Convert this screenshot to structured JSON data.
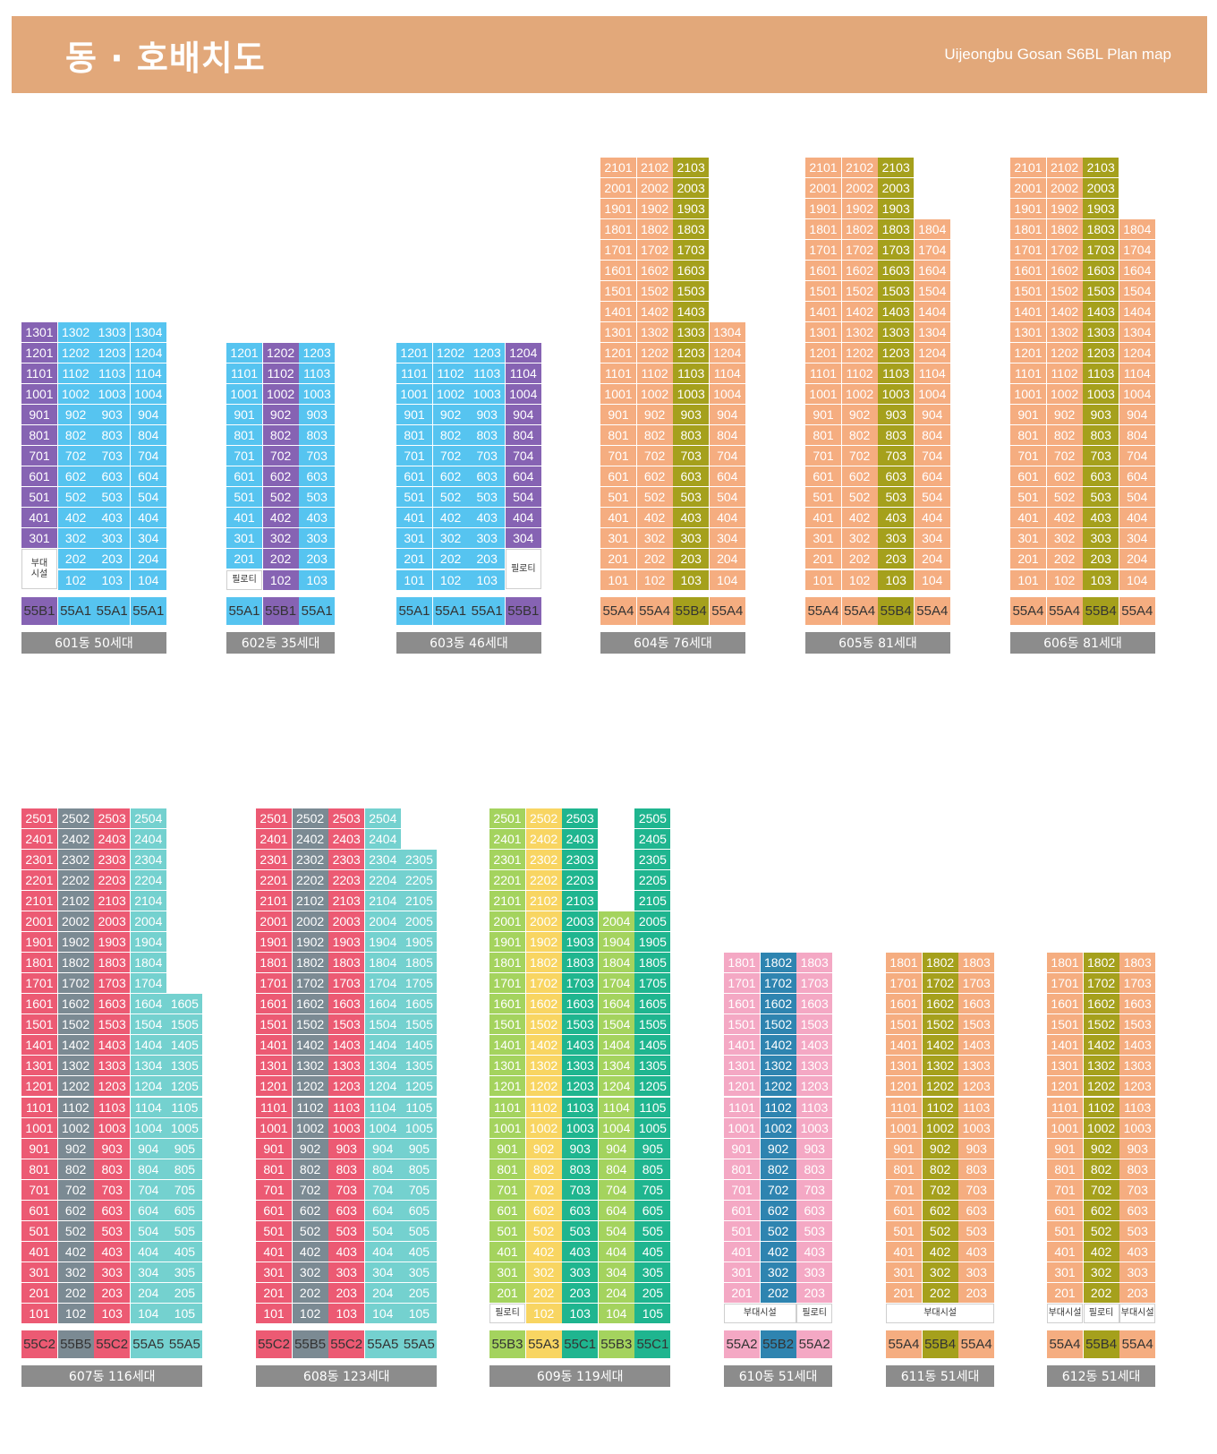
{
  "header": {
    "title": "동 · 호배치도",
    "subtitle": "Uijeongbu Gosan S6BL Plan map"
  },
  "colors": {
    "55B1": "#8663B3",
    "55A1": "#56C4F0",
    "55A4": "#F5AD80",
    "55B4": "#A5A01C",
    "55C2": "#EC5A73",
    "55B5": "#7B8A93",
    "55A5": "#74D1CF",
    "55B3": "#A4D35E",
    "55A3": "#F8D562",
    "55C1": "#1FB58F",
    "55A2": "#F4A8C4",
    "55B2": "#2E84B0"
  },
  "buildings": [
    {
      "id": "601",
      "label": "601동 50세대",
      "types": [
        "55B1",
        "55A1",
        "55A1",
        "55A1"
      ],
      "columns": [
        {
          "top": 13,
          "bottom": 3
        },
        {
          "top": 13,
          "bottom": 1
        },
        {
          "top": 13,
          "bottom": 1
        },
        {
          "top": 13,
          "bottom": 1
        }
      ],
      "facilities": [
        {
          "text": "부대\n시설",
          "col": 0,
          "span": 1,
          "floors": [
            1,
            2
          ]
        }
      ]
    },
    {
      "id": "602",
      "label": "602동 35세대",
      "types": [
        "55A1",
        "55B1",
        "55A1"
      ],
      "columns": [
        {
          "top": 12,
          "bottom": 2
        },
        {
          "top": 12,
          "bottom": 1
        },
        {
          "top": 12,
          "bottom": 1
        }
      ],
      "facilities": [
        {
          "text": "필로티",
          "col": 0,
          "span": 1,
          "floors": [
            1
          ]
        }
      ]
    },
    {
      "id": "603",
      "label": "603동 46세대",
      "types": [
        "55A1",
        "55A1",
        "55A1",
        "55B1"
      ],
      "columns": [
        {
          "top": 12,
          "bottom": 1
        },
        {
          "top": 12,
          "bottom": 1
        },
        {
          "top": 12,
          "bottom": 1
        },
        {
          "top": 12,
          "bottom": 3
        }
      ],
      "facilities": [
        {
          "text": "필로티",
          "col": 3,
          "span": 1,
          "floors": [
            1,
            2
          ]
        }
      ]
    },
    {
      "id": "604",
      "label": "604동 76세대",
      "types": [
        "55A4",
        "55A4",
        "55B4",
        "55A4"
      ],
      "columns": [
        {
          "top": 21,
          "bottom": 1
        },
        {
          "top": 21,
          "bottom": 1
        },
        {
          "top": 21,
          "bottom": 1
        },
        {
          "top": 13,
          "bottom": 1
        }
      ],
      "facilities": []
    },
    {
      "id": "605",
      "label": "605동 81세대",
      "types": [
        "55A4",
        "55A4",
        "55B4",
        "55A4"
      ],
      "columns": [
        {
          "top": 21,
          "bottom": 1
        },
        {
          "top": 21,
          "bottom": 1
        },
        {
          "top": 21,
          "bottom": 1
        },
        {
          "top": 18,
          "bottom": 1
        }
      ],
      "facilities": []
    },
    {
      "id": "606",
      "label": "606동 81세대",
      "types": [
        "55A4",
        "55A4",
        "55B4",
        "55A4"
      ],
      "columns": [
        {
          "top": 21,
          "bottom": 1
        },
        {
          "top": 21,
          "bottom": 1
        },
        {
          "top": 21,
          "bottom": 1
        },
        {
          "top": 18,
          "bottom": 1
        }
      ],
      "facilities": []
    },
    {
      "id": "607",
      "label": "607동 116세대",
      "types": [
        "55C2",
        "55B5",
        "55C2",
        "55A5",
        "55A5"
      ],
      "columns": [
        {
          "top": 25,
          "bottom": 1
        },
        {
          "top": 25,
          "bottom": 1
        },
        {
          "top": 25,
          "bottom": 1
        },
        {
          "top": 25,
          "bottom": 1
        },
        {
          "top": 16,
          "bottom": 1
        }
      ],
      "facilities": []
    },
    {
      "id": "608",
      "label": "608동 123세대",
      "types": [
        "55C2",
        "55B5",
        "55C2",
        "55A5",
        "55A5"
      ],
      "columns": [
        {
          "top": 25,
          "bottom": 1
        },
        {
          "top": 25,
          "bottom": 1
        },
        {
          "top": 25,
          "bottom": 1
        },
        {
          "top": 25,
          "bottom": 1
        },
        {
          "top": 23,
          "bottom": 1
        }
      ],
      "facilities": []
    },
    {
      "id": "609",
      "label": "609동 119세대",
      "types": [
        "55B3",
        "55A3",
        "55C1",
        "55B3",
        "55C1"
      ],
      "columns": [
        {
          "top": 25,
          "bottom": 2
        },
        {
          "top": 25,
          "bottom": 1
        },
        {
          "top": 24,
          "bottom": 1
        },
        {
          "top": 20,
          "bottom": 1
        },
        {
          "top": 25,
          "bottom": 1
        }
      ],
      "extras": [
        {
          "col": 2,
          "floor": 25,
          "num": "2503"
        }
      ],
      "facilities": [
        {
          "text": "필로티",
          "col": 0,
          "span": 1,
          "floors": [
            1
          ]
        }
      ]
    },
    {
      "id": "610",
      "label": "610동 51세대",
      "types": [
        "55A2",
        "55B2",
        "55A2"
      ],
      "columns": [
        {
          "top": 18,
          "bottom": 2
        },
        {
          "top": 18,
          "bottom": 2
        },
        {
          "top": 18,
          "bottom": 2
        }
      ],
      "facilities": [
        {
          "text": "부대시설",
          "col": 0,
          "span": 2,
          "floors": [
            1
          ]
        },
        {
          "text": "필로티",
          "col": 2,
          "span": 1,
          "floors": [
            1
          ]
        }
      ]
    },
    {
      "id": "611",
      "label": "611동 51세대",
      "types": [
        "55A4",
        "55B4",
        "55A4"
      ],
      "columns": [
        {
          "top": 18,
          "bottom": 2
        },
        {
          "top": 18,
          "bottom": 2
        },
        {
          "top": 18,
          "bottom": 2
        }
      ],
      "facilities": [
        {
          "text": "부대시설",
          "col": 0,
          "span": 3,
          "floors": [
            1
          ]
        }
      ]
    },
    {
      "id": "612",
      "label": "612동 51세대",
      "types": [
        "55A4",
        "55B4",
        "55A4"
      ],
      "columns": [
        {
          "top": 18,
          "bottom": 2
        },
        {
          "top": 18,
          "bottom": 2
        },
        {
          "top": 18,
          "bottom": 2
        }
      ],
      "facilities": [
        {
          "text": "부대시설",
          "col": 0,
          "span": 1,
          "floors": [
            1
          ]
        },
        {
          "text": "필로티",
          "col": 1,
          "span": 1,
          "floors": [
            1
          ]
        },
        {
          "text": "부대시설",
          "col": 2,
          "span": 1,
          "floors": [
            1
          ]
        }
      ]
    }
  ]
}
